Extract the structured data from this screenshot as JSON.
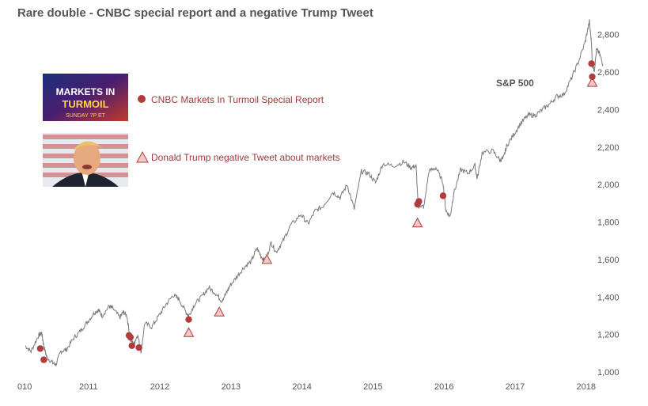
{
  "chart_data": {
    "type": "line",
    "title": "Rare double - CNBC special report and a negative Trump Tweet",
    "series_label": "S&P 500",
    "x_ticks": [
      "010",
      "2011",
      "2012",
      "2013",
      "2014",
      "2015",
      "2016",
      "2017",
      "2018"
    ],
    "y_ticks": [
      "1,000",
      "1,200",
      "1,400",
      "1,600",
      "1,800",
      "2,000",
      "2,200",
      "2,400",
      "2,600",
      "2,800"
    ],
    "xlim": [
      2010.12,
      2018.25
    ],
    "ylim": [
      1000,
      2900
    ],
    "grid": false,
    "legend": {
      "placement": "top-left",
      "items": [
        {
          "marker": "circle",
          "label": "CNBC Markets In Turmoil Special Report"
        },
        {
          "marker": "triangle",
          "label": "Donald Trump negative Tweet about markets"
        }
      ]
    },
    "colors": {
      "line": "#7a7a7a",
      "marker_fill": "#b03c3c",
      "triangle_fill": "#f2c9c9",
      "triangle_stroke": "#b03c3c",
      "legend_text": "#a03a3a"
    },
    "images": [
      {
        "name": "cnbc-markets-in-turmoil-logo",
        "text": "MARKETS IN TURMOIL",
        "subtext": "SUNDAY 7P ET"
      },
      {
        "name": "donald-trump-photo"
      }
    ],
    "series": [
      {
        "name": "S&P 500",
        "points": [
          [
            2010.12,
            1140
          ],
          [
            2010.2,
            1110
          ],
          [
            2010.3,
            1190
          ],
          [
            2010.35,
            1210
          ],
          [
            2010.38,
            1140
          ],
          [
            2010.42,
            1080
          ],
          [
            2010.5,
            1050
          ],
          [
            2010.55,
            1040
          ],
          [
            2010.62,
            1110
          ],
          [
            2010.7,
            1120
          ],
          [
            2010.8,
            1180
          ],
          [
            2010.9,
            1220
          ],
          [
            2011.0,
            1270
          ],
          [
            2011.1,
            1320
          ],
          [
            2011.15,
            1330
          ],
          [
            2011.2,
            1300
          ],
          [
            2011.3,
            1350
          ],
          [
            2011.35,
            1340
          ],
          [
            2011.45,
            1290
          ],
          [
            2011.5,
            1320
          ],
          [
            2011.55,
            1300
          ],
          [
            2011.6,
            1170
          ],
          [
            2011.65,
            1150
          ],
          [
            2011.7,
            1200
          ],
          [
            2011.75,
            1110
          ],
          [
            2011.8,
            1260
          ],
          [
            2011.9,
            1240
          ],
          [
            2012.0,
            1300
          ],
          [
            2012.1,
            1360
          ],
          [
            2012.2,
            1410
          ],
          [
            2012.28,
            1390
          ],
          [
            2012.38,
            1320
          ],
          [
            2012.42,
            1300
          ],
          [
            2012.5,
            1360
          ],
          [
            2012.6,
            1400
          ],
          [
            2012.7,
            1450
          ],
          [
            2012.8,
            1420
          ],
          [
            2012.88,
            1380
          ],
          [
            2012.95,
            1420
          ],
          [
            2013.0,
            1460
          ],
          [
            2013.1,
            1510
          ],
          [
            2013.2,
            1560
          ],
          [
            2013.3,
            1590
          ],
          [
            2013.38,
            1660
          ],
          [
            2013.45,
            1610
          ],
          [
            2013.5,
            1590
          ],
          [
            2013.58,
            1690
          ],
          [
            2013.65,
            1640
          ],
          [
            2013.75,
            1700
          ],
          [
            2013.85,
            1780
          ],
          [
            2014.0,
            1840
          ],
          [
            2014.1,
            1790
          ],
          [
            2014.2,
            1860
          ],
          [
            2014.3,
            1880
          ],
          [
            2014.45,
            1960
          ],
          [
            2014.55,
            1930
          ],
          [
            2014.65,
            2000
          ],
          [
            2014.75,
            1870
          ],
          [
            2014.85,
            2070
          ],
          [
            2014.95,
            2060
          ],
          [
            2015.05,
            2010
          ],
          [
            2015.15,
            2110
          ],
          [
            2015.3,
            2100
          ],
          [
            2015.45,
            2120
          ],
          [
            2015.55,
            2090
          ],
          [
            2015.62,
            2100
          ],
          [
            2015.65,
            1880
          ],
          [
            2015.68,
            1890
          ],
          [
            2015.73,
            1880
          ],
          [
            2015.8,
            2070
          ],
          [
            2015.9,
            2090
          ],
          [
            2016.0,
            2010
          ],
          [
            2016.04,
            1860
          ],
          [
            2016.1,
            1830
          ],
          [
            2016.15,
            1950
          ],
          [
            2016.25,
            2080
          ],
          [
            2016.35,
            2060
          ],
          [
            2016.45,
            2100
          ],
          [
            2016.48,
            2030
          ],
          [
            2016.55,
            2170
          ],
          [
            2016.7,
            2180
          ],
          [
            2016.8,
            2130
          ],
          [
            2016.85,
            2140
          ],
          [
            2016.9,
            2210
          ],
          [
            2017.0,
            2270
          ],
          [
            2017.1,
            2330
          ],
          [
            2017.2,
            2370
          ],
          [
            2017.3,
            2370
          ],
          [
            2017.4,
            2400
          ],
          [
            2017.5,
            2430
          ],
          [
            2017.6,
            2470
          ],
          [
            2017.7,
            2480
          ],
          [
            2017.8,
            2560
          ],
          [
            2017.9,
            2650
          ],
          [
            2018.0,
            2760
          ],
          [
            2018.06,
            2870
          ],
          [
            2018.09,
            2750
          ],
          [
            2018.1,
            2640
          ],
          [
            2018.13,
            2610
          ],
          [
            2018.16,
            2720
          ],
          [
            2018.2,
            2700
          ],
          [
            2018.25,
            2640
          ]
        ]
      }
    ],
    "cnbc_report_points": [
      [
        2010.33,
        1125
      ],
      [
        2010.38,
        1065
      ],
      [
        2011.58,
        1195
      ],
      [
        2011.6,
        1185
      ],
      [
        2011.62,
        1140
      ],
      [
        2011.72,
        1130
      ],
      [
        2012.42,
        1280
      ],
      [
        2015.64,
        1895
      ],
      [
        2015.66,
        1910
      ],
      [
        2016.0,
        1940
      ],
      [
        2018.09,
        2645
      ],
      [
        2018.1,
        2575
      ]
    ],
    "trump_tweet_points": [
      [
        2012.42,
        1210
      ],
      [
        2012.85,
        1320
      ],
      [
        2013.52,
        1600
      ],
      [
        2015.64,
        1795
      ],
      [
        2018.1,
        2545
      ]
    ]
  }
}
